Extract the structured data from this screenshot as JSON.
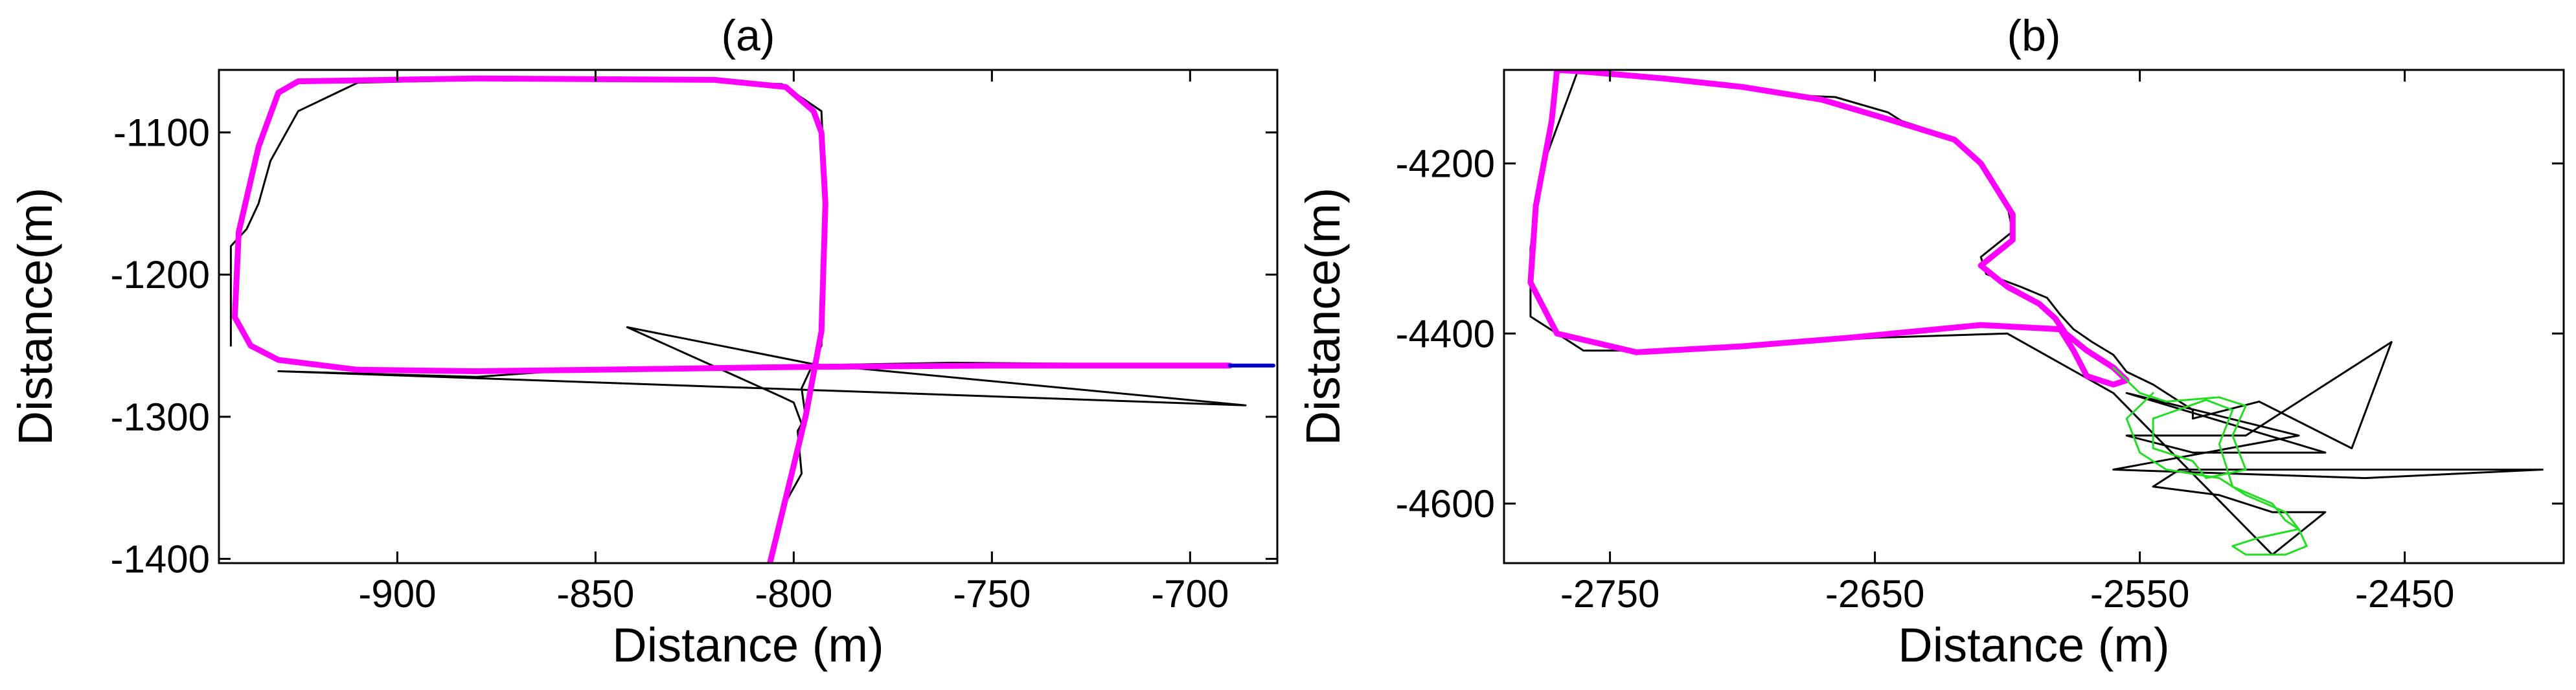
{
  "colors": {
    "black_trace": "#000000",
    "magenta_trace": "#ff00ff",
    "green_trace": "#22dd22",
    "blue_trace": "#0000c0"
  },
  "chart_data": [
    {
      "type": "line",
      "title": "(a)",
      "xlabel": "Distance (m)",
      "ylabel": "Distance(m)",
      "xlim": [
        -945,
        -678
      ],
      "ylim": [
        -1403,
        -1056
      ],
      "xticks": [
        -900,
        -850,
        -800,
        -750,
        -700
      ],
      "yticks": [
        -1100,
        -1200,
        -1300,
        -1400
      ],
      "grid": false,
      "series": [
        {
          "color": "black",
          "points": [
            [
              -942,
              -1250
            ],
            [
              -942,
              -1180
            ],
            [
              -938,
              -1168
            ],
            [
              -935,
              -1150
            ],
            [
              -932,
              -1120
            ],
            [
              -925,
              -1085
            ],
            [
              -910,
              -1065
            ],
            [
              -880,
              -1063
            ],
            [
              -820,
              -1064
            ],
            [
              -803,
              -1066
            ],
            [
              -793,
              -1085
            ],
            [
              -792,
              -1150
            ],
            [
              -793,
              -1250
            ],
            [
              -795,
              -1262
            ],
            [
              -798,
              -1280
            ],
            [
              -797,
              -1300
            ],
            [
              -799,
              -1310
            ],
            [
              -798,
              -1340
            ],
            [
              -802,
              -1360
            ],
            [
              -806,
              -1403
            ],
            [
              -798,
              -1305
            ],
            [
              -800,
              -1290
            ],
            [
              -803,
              -1286
            ],
            [
              -842,
              -1237
            ],
            [
              -795,
              -1263
            ],
            [
              -686,
              -1292
            ],
            [
              -930,
              -1268
            ],
            [
              -880,
              -1272
            ],
            [
              -860,
              -1268
            ],
            [
              -800,
              -1264
            ],
            [
              -760,
              -1262
            ],
            [
              -720,
              -1263
            ],
            [
              -690,
              -1263
            ]
          ]
        },
        {
          "color": "magenta",
          "points": [
            [
              -806,
              -1403
            ],
            [
              -797,
              -1300
            ],
            [
              -793,
              -1240
            ],
            [
              -792,
              -1150
            ],
            [
              -793,
              -1100
            ],
            [
              -795,
              -1085
            ],
            [
              -802,
              -1068
            ],
            [
              -820,
              -1063
            ],
            [
              -880,
              -1062
            ],
            [
              -925,
              -1064
            ],
            [
              -930,
              -1072
            ],
            [
              -935,
              -1110
            ],
            [
              -940,
              -1170
            ],
            [
              -941,
              -1230
            ],
            [
              -937,
              -1250
            ],
            [
              -930,
              -1260
            ],
            [
              -910,
              -1267
            ],
            [
              -880,
              -1268
            ],
            [
              -850,
              -1267
            ],
            [
              -800,
              -1265
            ],
            [
              -750,
              -1264
            ],
            [
              -700,
              -1264
            ],
            [
              -690,
              -1264
            ]
          ]
        },
        {
          "color": "blue",
          "points": [
            [
              -690,
              -1264
            ],
            [
              -679,
              -1264
            ]
          ]
        }
      ]
    },
    {
      "type": "line",
      "title": "(b)",
      "xlabel": "Distance (m)",
      "ylabel": "Distance(m)",
      "xlim": [
        -2790,
        -2390
      ],
      "ylim": [
        -4670,
        -4090
      ],
      "xticks": [
        -2750,
        -2650,
        -2550,
        -2450
      ],
      "yticks": [
        -4200,
        -4400,
        -4600
      ],
      "grid": false,
      "series": [
        {
          "color": "black",
          "points": [
            [
              -2760,
              -4090
            ],
            [
              -2740,
              -4095
            ],
            [
              -2700,
              -4108
            ],
            [
              -2680,
              -4120
            ],
            [
              -2665,
              -4122
            ],
            [
              -2645,
              -4140
            ],
            [
              -2640,
              -4150
            ],
            [
              -2620,
              -4170
            ],
            [
              -2610,
              -4200
            ],
            [
              -2600,
              -4250
            ],
            [
              -2598,
              -4280
            ],
            [
              -2610,
              -4310
            ],
            [
              -2608,
              -4330
            ],
            [
              -2595,
              -4345
            ],
            [
              -2585,
              -4358
            ],
            [
              -2580,
              -4378
            ],
            [
              -2575,
              -4395
            ],
            [
              -2568,
              -4410
            ],
            [
              -2560,
              -4425
            ],
            [
              -2555,
              -4445
            ],
            [
              -2545,
              -4460
            ],
            [
              -2530,
              -4490
            ],
            [
              -2530,
              -4500
            ],
            [
              -2505,
              -4480
            ],
            [
              -2470,
              -4535
            ],
            [
              -2455,
              -4410
            ],
            [
              -2510,
              -4520
            ],
            [
              -2555,
              -4520
            ],
            [
              -2530,
              -4540
            ],
            [
              -2480,
              -4540
            ],
            [
              -2555,
              -4470
            ],
            [
              -2490,
              -4520
            ],
            [
              -2560,
              -4560
            ],
            [
              -2465,
              -4570
            ],
            [
              -2398,
              -4560
            ],
            [
              -2535,
              -4560
            ],
            [
              -2545,
              -4580
            ],
            [
              -2520,
              -4590
            ],
            [
              -2500,
              -4610
            ],
            [
              -2480,
              -4610
            ],
            [
              -2500,
              -4660
            ],
            [
              -2560,
              -4470
            ],
            [
              -2600,
              -4400
            ],
            [
              -2650,
              -4405
            ],
            [
              -2700,
              -4415
            ],
            [
              -2740,
              -4420
            ],
            [
              -2760,
              -4420
            ],
            [
              -2780,
              -4380
            ],
            [
              -2780,
              -4300
            ],
            [
              -2775,
              -4200
            ],
            [
              -2762,
              -4090
            ]
          ]
        },
        {
          "color": "magenta",
          "points": [
            [
              -2770,
              -4090
            ],
            [
              -2760,
              -4092
            ],
            [
              -2730,
              -4100
            ],
            [
              -2700,
              -4110
            ],
            [
              -2670,
              -4125
            ],
            [
              -2645,
              -4148
            ],
            [
              -2620,
              -4172
            ],
            [
              -2610,
              -4200
            ],
            [
              -2598,
              -4260
            ],
            [
              -2598,
              -4290
            ],
            [
              -2610,
              -4320
            ],
            [
              -2600,
              -4345
            ],
            [
              -2588,
              -4365
            ],
            [
              -2582,
              -4382
            ],
            [
              -2578,
              -4400
            ],
            [
              -2570,
              -4420
            ],
            [
              -2560,
              -4440
            ],
            [
              -2555,
              -4455
            ],
            [
              -2560,
              -4460
            ],
            [
              -2570,
              -4450
            ],
            [
              -2575,
              -4420
            ],
            [
              -2580,
              -4395
            ],
            [
              -2610,
              -4390
            ],
            [
              -2660,
              -4405
            ],
            [
              -2700,
              -4415
            ],
            [
              -2740,
              -4422
            ],
            [
              -2770,
              -4400
            ],
            [
              -2780,
              -4340
            ],
            [
              -2778,
              -4250
            ],
            [
              -2772,
              -4150
            ],
            [
              -2770,
              -4090
            ]
          ]
        },
        {
          "color": "green",
          "points": [
            [
              -2560,
              -4440
            ],
            [
              -2550,
              -4470
            ],
            [
              -2540,
              -4480
            ],
            [
              -2520,
              -4475
            ],
            [
              -2510,
              -4485
            ],
            [
              -2515,
              -4520
            ],
            [
              -2510,
              -4560
            ],
            [
              -2525,
              -4570
            ],
            [
              -2530,
              -4550
            ],
            [
              -2545,
              -4535
            ],
            [
              -2545,
              -4500
            ],
            [
              -2525,
              -4478
            ],
            [
              -2515,
              -4490
            ],
            [
              -2520,
              -4530
            ],
            [
              -2515,
              -4580
            ],
            [
              -2500,
              -4600
            ],
            [
              -2495,
              -4620
            ],
            [
              -2490,
              -4630
            ],
            [
              -2487,
              -4650
            ],
            [
              -2495,
              -4660
            ],
            [
              -2510,
              -4660
            ],
            [
              -2515,
              -4650
            ],
            [
              -2505,
              -4640
            ],
            [
              -2490,
              -4630
            ],
            [
              -2495,
              -4610
            ],
            [
              -2510,
              -4590
            ],
            [
              -2520,
              -4570
            ],
            [
              -2540,
              -4560
            ],
            [
              -2550,
              -4540
            ],
            [
              -2555,
              -4500
            ],
            [
              -2545,
              -4470
            ]
          ]
        }
      ]
    }
  ]
}
